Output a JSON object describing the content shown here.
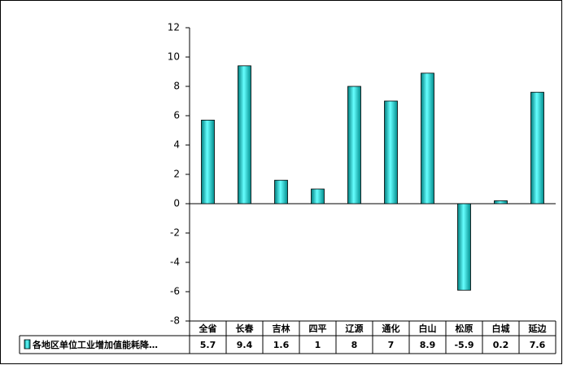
{
  "chart_data": {
    "type": "bar",
    "categories": [
      "全省",
      "长春",
      "吉林",
      "四平",
      "辽源",
      "通化",
      "白山",
      "松原",
      "白城",
      "延边"
    ],
    "series": [
      {
        "name": "各地区单位工业增加值能耗降…",
        "color": "#33cccc",
        "values": [
          5.7,
          9.4,
          1.6,
          1,
          8,
          7,
          8.9,
          -5.9,
          0.2,
          7.6
        ]
      }
    ],
    "ylim": [
      -8,
      12
    ],
    "yticks": [
      -8,
      -6,
      -4,
      -2,
      0,
      2,
      4,
      6,
      8,
      10,
      12
    ],
    "grid": false
  }
}
